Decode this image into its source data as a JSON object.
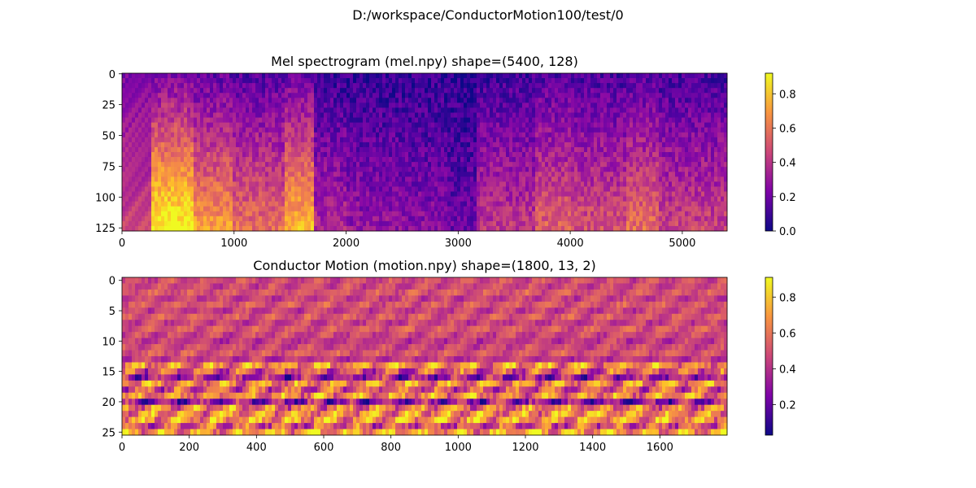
{
  "figure_title": "D:/workspace/ConductorMotion100/test/0",
  "chart_data": [
    {
      "type": "heatmap",
      "title": "Mel spectrogram (mel.npy) shape=(5400, 128)",
      "colormap": "plasma",
      "n_cols": 5400,
      "n_rows": 128,
      "xlim": [
        0,
        5400
      ],
      "ylim": [
        127.5,
        -0.5
      ],
      "x_ticks": [
        0,
        1000,
        2000,
        3000,
        4000,
        5000
      ],
      "y_ticks": [
        0,
        25,
        50,
        75,
        100,
        125
      ],
      "colorbar": {
        "range": [
          0.0,
          0.92
        ],
        "ticks": [
          "0.0",
          "0.2",
          "0.4",
          "0.6",
          "0.8"
        ],
        "tick_values": [
          0.0,
          0.2,
          0.4,
          0.6,
          0.8
        ]
      },
      "description_levels": {
        "x_segments": [
          0,
          250,
          650,
          1000,
          1450,
          1700,
          2000,
          2500,
          2900,
          3150,
          3700,
          4000,
          4500,
          4800,
          5400
        ],
        "segment_mean": [
          0.35,
          0.72,
          0.55,
          0.45,
          0.6,
          0.28,
          0.22,
          0.2,
          0.15,
          0.32,
          0.42,
          0.38,
          0.45,
          0.35,
          0.45
        ]
      }
    },
    {
      "type": "heatmap",
      "title": "Conductor Motion (motion.npy) shape=(1800, 13, 2)",
      "colormap": "plasma",
      "n_cols": 1800,
      "n_rows": 26,
      "xlim": [
        0,
        1800
      ],
      "ylim": [
        25.5,
        -0.5
      ],
      "x_ticks": [
        0,
        200,
        400,
        600,
        800,
        1000,
        1200,
        1400,
        1600
      ],
      "y_ticks": [
        0,
        5,
        10,
        15,
        20,
        25
      ],
      "colorbar": {
        "range": [
          0.03,
          0.91
        ],
        "ticks": [
          "0.2",
          "0.4",
          "0.6",
          "0.8"
        ],
        "tick_values": [
          0.2,
          0.4,
          0.6,
          0.8
        ]
      },
      "row_means": [
        0.52,
        0.5,
        0.55,
        0.48,
        0.55,
        0.48,
        0.55,
        0.48,
        0.55,
        0.5,
        0.45,
        0.5,
        0.55,
        0.45,
        0.72,
        0.55,
        0.35,
        0.7,
        0.55,
        0.7,
        0.3,
        0.65,
        0.72,
        0.75,
        0.55,
        0.75
      ]
    }
  ]
}
